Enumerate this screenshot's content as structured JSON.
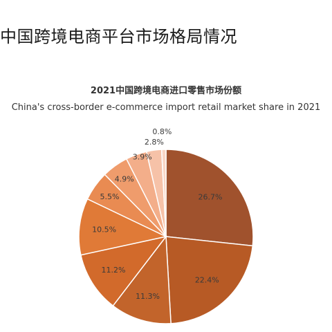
{
  "page": {
    "heading": "中国跨境电商平台市场格局情况"
  },
  "chart_data": {
    "type": "pie",
    "title": "2021中国跨境电商进口零售市场份额",
    "subtitle": "China's cross-border e-commerce import retail market share in 2021",
    "start_angle_deg": 0,
    "direction": "clockwise",
    "slices": [
      {
        "value": 26.7,
        "label": "26.7%",
        "color": "#a0522d"
      },
      {
        "value": 22.4,
        "label": "22.4%",
        "color": "#b75a25"
      },
      {
        "value": 11.3,
        "label": "11.3%",
        "color": "#c2642b"
      },
      {
        "value": 11.2,
        "label": "11.2%",
        "color": "#d26a2b"
      },
      {
        "value": 10.5,
        "label": "10.5%",
        "color": "#e07a37"
      },
      {
        "value": 5.5,
        "label": "5.5%",
        "color": "#e98b52"
      },
      {
        "value": 4.9,
        "label": "4.9%",
        "color": "#ef9c6c"
      },
      {
        "value": 3.9,
        "label": "3.9%",
        "color": "#f3ae8a"
      },
      {
        "value": 2.8,
        "label": "2.8%",
        "color": "#f6c2a8"
      },
      {
        "value": 0.8,
        "label": "0.8%",
        "color": "#f9d6c5"
      }
    ]
  }
}
